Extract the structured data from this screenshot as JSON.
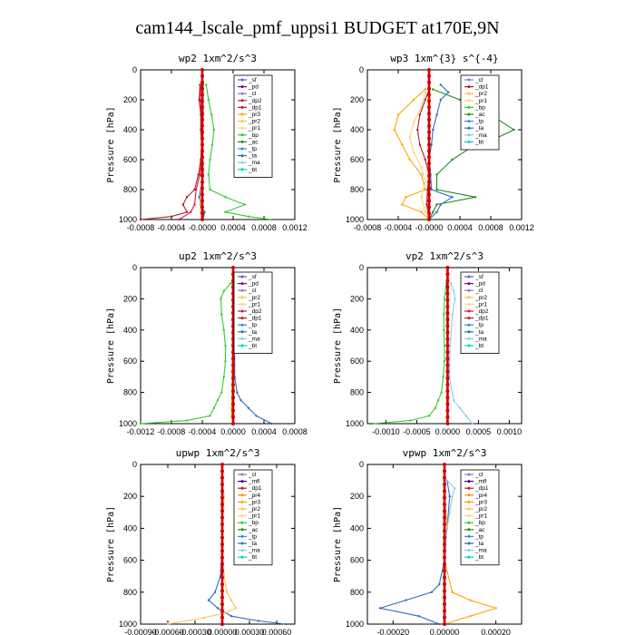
{
  "title": "cam144_lscale_pmf_uppsi1  BUDGET at170E,9N",
  "colors": {
    "sf": "#6a5acd",
    "pd": "#8b008b",
    "cl": "#9370db",
    "dp2": "#dc143c",
    "dp1": "#b22222",
    "pr3": "#ffa500",
    "pr2": "#ffc04d",
    "pr1": "#ffd27a",
    "bp": "#32cd32",
    "ac": "#228b22",
    "tp": "#1e90ff",
    "ta": "#2e6fb8",
    "ma": "#87ceeb",
    "bt": "#00ced1",
    "mfl": "#4b0082",
    "pr4": "#ff8c00",
    "red": "#d40000"
  },
  "chart_data": [
    {
      "type": "line",
      "title": "wp2  1xm^2/s^3",
      "ylabel": "Pressure [hPa]",
      "xlim": [
        -0.0008,
        0.0012
      ],
      "ylim": [
        1000,
        0
      ],
      "xticks": [
        "-0.0008",
        "-0.0004",
        "-0.0000",
        "0.0004",
        "0.0008",
        "0.0012"
      ],
      "yticks": [
        "0",
        "200",
        "400",
        "600",
        "800",
        "1000"
      ],
      "legend": [
        "_sf",
        "_pd",
        "_cl",
        "_dp2",
        "_dp1",
        "_pr3",
        "_pr2",
        "_pr1",
        "_bp",
        "_ac",
        "_tp",
        "_ta",
        "_ma",
        "_bt"
      ],
      "series": [
        {
          "name": "_bp",
          "color": "bp",
          "p": [
            100,
            200,
            300,
            400,
            500,
            600,
            700,
            800,
            850,
            900,
            950,
            980,
            1000
          ],
          "v": [
            5e-05,
            8e-05,
            0.00012,
            0.00015,
            0.00013,
            0.0001,
            8e-05,
            0.0001,
            0.0003,
            0.00055,
            0.0003,
            0.0006,
            0.0009
          ]
        },
        {
          "name": "_dp1",
          "color": "dp1",
          "p": [
            100,
            200,
            300,
            400,
            500,
            600,
            700,
            800,
            850,
            900,
            950,
            980,
            1000
          ],
          "v": [
            -3e-05,
            -4e-05,
            -2e-05,
            -2e-05,
            -1e-05,
            -2e-05,
            -5e-05,
            -0.0001,
            -0.0002,
            -0.00025,
            -0.0002,
            -0.0004,
            -0.0008
          ]
        },
        {
          "name": "_dp2",
          "color": "dp2",
          "p": [
            100,
            200,
            300,
            400,
            500,
            600,
            700,
            800,
            900,
            950,
            1000
          ],
          "v": [
            -2e-05,
            -3e-05,
            -1e-05,
            0,
            0,
            -1e-05,
            -3e-05,
            -8e-05,
            -0.0001,
            -0.00015,
            -0.0003
          ]
        },
        {
          "name": "_ta",
          "color": "ta",
          "p": [
            100,
            300,
            500,
            700,
            850,
            900,
            950,
            1000
          ],
          "v": [
            1e-05,
            1e-05,
            0,
            1e-05,
            -4e-05,
            -2e-05,
            3e-05,
            1e-05
          ]
        },
        {
          "name": "_pr2",
          "color": "pr2",
          "p": [
            100,
            300,
            500,
            700,
            900,
            950,
            1000
          ],
          "v": [
            0,
            0,
            0,
            0,
            -3e-05,
            -2e-05,
            0
          ]
        },
        {
          "name": "_pd",
          "color": "red",
          "p": [
            0,
            200,
            400,
            600,
            800,
            900,
            1000
          ],
          "v": [
            0,
            0,
            0,
            0,
            0,
            0,
            0
          ]
        }
      ]
    },
    {
      "type": "line",
      "title": "wp3  1xm^{3} s^{-4}",
      "ylabel": "Pressure [hPa]",
      "xlim": [
        -0.0008,
        0.0012
      ],
      "ylim": [
        1000,
        0
      ],
      "xticks": [
        "-0.0008",
        "-0.0004",
        "-0.0000",
        "0.0004",
        "0.0008",
        "0.0012"
      ],
      "yticks": [
        "0",
        "200",
        "400",
        "600",
        "800",
        "1000"
      ],
      "legend": [
        "_cl",
        "_dp1",
        "_pr2",
        "_pr1",
        "_bp",
        "_ac",
        "_tp",
        "_ta",
        "_ma",
        "_bt"
      ],
      "series": [
        {
          "name": "_pr2",
          "color": "pr3",
          "p": [
            130,
            200,
            300,
            400,
            500,
            600,
            700,
            800,
            850,
            900,
            950,
            1000
          ],
          "v": [
            -5e-05,
            -0.0002,
            -0.0004,
            -0.00045,
            -0.00035,
            -0.00025,
            -0.0001,
            -5e-05,
            -0.0003,
            -0.00035,
            -0.0001,
            0
          ]
        },
        {
          "name": "_pr1",
          "color": "pr1",
          "p": [
            150,
            250,
            350,
            450,
            550,
            650,
            750,
            850,
            950,
            1000
          ],
          "v": [
            -5e-05,
            -0.0001,
            -0.0002,
            -0.00025,
            -0.0002,
            -0.0001,
            -5e-05,
            -0.0001,
            -5e-05,
            0
          ]
        },
        {
          "name": "_dp1",
          "color": "dp1",
          "p": [
            130,
            200,
            300,
            400,
            500,
            600,
            700,
            800,
            900,
            1000
          ],
          "v": [
            0,
            -5e-05,
            -0.00012,
            -0.00015,
            -0.00012,
            -5e-05,
            0,
            -2e-05,
            -3e-05,
            0
          ]
        },
        {
          "name": "_ac",
          "color": "ac",
          "p": [
            130,
            200,
            300,
            400,
            450,
            500,
            600,
            700,
            800,
            850,
            900,
            950,
            1000
          ],
          "v": [
            5e-05,
            0.0004,
            0.0008,
            0.0011,
            0.0009,
            0.0006,
            0.0003,
            0.0001,
            0.0001,
            0.0006,
            0.0001,
            5e-05,
            0
          ]
        },
        {
          "name": "_ta",
          "color": "ta",
          "p": [
            100,
            150,
            200,
            300,
            400,
            500,
            600,
            700,
            800,
            850,
            900,
            950,
            1000
          ],
          "v": [
            0.00015,
            0.00025,
            0.00015,
            0.0001,
            5e-05,
            3e-05,
            0,
            2e-05,
            3e-05,
            0.0003,
            0.00015,
            0.0001,
            0
          ]
        },
        {
          "name": "_cl",
          "color": "red",
          "p": [
            0,
            200,
            400,
            600,
            800,
            1000
          ],
          "v": [
            0,
            0,
            0,
            0,
            0,
            0
          ]
        }
      ]
    },
    {
      "type": "line",
      "title": "up2  1xm^2/s^3",
      "ylabel": "Pressure [hPa]",
      "xlim": [
        -0.0012,
        0.0008
      ],
      "ylim": [
        1000,
        0
      ],
      "xticks": [
        "-0.0012",
        "-0.0008",
        "-0.0004",
        "0.0000",
        "0.0004",
        "0.0008"
      ],
      "yticks": [
        "0",
        "200",
        "400",
        "600",
        "800",
        "1000"
      ],
      "legend": [
        "_sf",
        "_pd",
        "_cl",
        "_pr2",
        "_pr1",
        "_dp2",
        "_dp1",
        "_tp",
        "_ta",
        "_ma",
        "_bt"
      ],
      "series": [
        {
          "name": "_dp1",
          "color": "bp",
          "p": [
            100,
            150,
            200,
            300,
            400,
            500,
            600,
            700,
            800,
            850,
            900,
            950,
            980,
            1000
          ],
          "v": [
            -3e-05,
            -0.00012,
            -0.00016,
            -0.00015,
            -0.00012,
            -0.0001,
            -0.0001,
            -0.00012,
            -0.00015,
            -0.0002,
            -0.00025,
            -0.0003,
            -0.0006,
            -0.0012
          ]
        },
        {
          "name": "_ta",
          "color": "ta",
          "p": [
            100,
            200,
            300,
            500,
            700,
            800,
            850,
            900,
            950,
            1000
          ],
          "v": [
            1e-05,
            3e-05,
            3e-05,
            2e-05,
            2e-05,
            5e-05,
            0.0001,
            0.0002,
            0.0003,
            0.0005
          ]
        },
        {
          "name": "_pr2",
          "color": "pr3",
          "p": [
            100,
            500,
            900,
            950,
            1000
          ],
          "v": [
            0,
            0,
            -2e-05,
            -2e-05,
            0
          ]
        },
        {
          "name": "_cl",
          "color": "red",
          "p": [
            0,
            200,
            400,
            600,
            800,
            1000
          ],
          "v": [
            0,
            0,
            0,
            0,
            0,
            0
          ]
        }
      ]
    },
    {
      "type": "line",
      "title": "vp2  1xm^2/s^3",
      "ylabel": "Pressure [hPa]",
      "xlim": [
        -0.0013,
        0.0012
      ],
      "ylim": [
        1000,
        0
      ],
      "xticks": [
        "-0.0010",
        "-0.0005",
        "0.0000",
        "0.0005",
        "0.0010"
      ],
      "xtick_vals": [
        -0.001,
        -0.0005,
        0,
        0.0005,
        0.001
      ],
      "yticks": [
        "0",
        "200",
        "400",
        "600",
        "800",
        "1000"
      ],
      "legend": [
        "_sf",
        "_pd",
        "_cl",
        "_pr2",
        "_pr1",
        "_dp2",
        "_dp1",
        "_tp",
        "_ta",
        "_ma",
        "_bt"
      ],
      "series": [
        {
          "name": "_dp1",
          "color": "bp",
          "p": [
            100,
            200,
            300,
            400,
            500,
            600,
            700,
            800,
            850,
            900,
            950,
            980,
            1000
          ],
          "v": [
            -2e-05,
            -5e-05,
            -6e-05,
            -6e-05,
            -5e-05,
            -5e-05,
            -7e-05,
            -0.0001,
            -0.00015,
            -0.0002,
            -0.0003,
            -0.0006,
            -0.0012
          ]
        },
        {
          "name": "_ta",
          "color": "ma",
          "p": [
            100,
            150,
            200,
            300,
            500,
            700,
            850,
            900,
            950,
            1000
          ],
          "v": [
            5e-05,
            0.0001,
            0.00012,
            8e-05,
            4e-05,
            3e-05,
            0.0001,
            0.0002,
            0.0003,
            0.0004
          ]
        },
        {
          "name": "_cl",
          "color": "red",
          "p": [
            0,
            200,
            400,
            600,
            800,
            1000
          ],
          "v": [
            0,
            0,
            0,
            0,
            0,
            0
          ]
        }
      ]
    },
    {
      "type": "line",
      "title": "upwp  1xm^2/s^3",
      "ylabel": "Pressure [hPa]",
      "xlim": [
        -0.0009,
        0.0008
      ],
      "ylim": [
        1000,
        0
      ],
      "xticks": [
        "-0.00090",
        "-0.00060",
        "-0.00030",
        "0.00000",
        "0.00030",
        "0.00060"
      ],
      "xtick_vals": [
        -0.0009,
        -0.0006,
        -0.0003,
        0,
        0.0003,
        0.0006
      ],
      "yticks": [
        "0",
        "200",
        "400",
        "600",
        "800",
        "1000"
      ],
      "legend": [
        "_cl",
        "_mfl",
        "_dp1",
        "_pr4",
        "_pr3",
        "_pr2",
        "_pr1",
        "_bp",
        "_ac",
        "_tp",
        "_ta",
        "_ma",
        "_bt"
      ],
      "series": [
        {
          "name": "_ta",
          "color": "ta",
          "p": [
            100,
            300,
            500,
            700,
            800,
            850,
            900,
            950,
            980,
            1000
          ],
          "v": [
            0,
            0,
            0,
            -2e-05,
            -8e-05,
            -0.00015,
            -5e-05,
            0.0001,
            0.0004,
            0.0007
          ]
        },
        {
          "name": "_pr2",
          "color": "pr2",
          "p": [
            100,
            200,
            400,
            600,
            800,
            850,
            900,
            930,
            960,
            1000
          ],
          "v": [
            0,
            2e-05,
            0,
            0,
            5e-05,
            0.0001,
            0.00015,
            3e-05,
            -0.0002,
            -0.0006
          ]
        },
        {
          "name": "_mfl",
          "color": "red",
          "p": [
            0,
            200,
            400,
            600,
            800,
            1000
          ],
          "v": [
            0,
            0,
            0,
            0,
            0,
            0
          ]
        }
      ]
    },
    {
      "type": "line",
      "title": "vpwp  1xm^2/s^3",
      "ylabel": "Pressure [hPa]",
      "xlim": [
        -0.0003,
        0.0003
      ],
      "ylim": [
        1000,
        0
      ],
      "xticks": [
        "-0.00020",
        "0.00000",
        "0.00020"
      ],
      "xtick_vals": [
        -0.0002,
        0,
        0.0002
      ],
      "yticks": [
        "0",
        "200",
        "400",
        "600",
        "800",
        "1000"
      ],
      "legend": [
        "_cl",
        "_mfl",
        "_dp1",
        "_pr4",
        "_pr3",
        "_pr2",
        "_pr1",
        "_bp",
        "_ac",
        "_tp",
        "_ta",
        "_ma",
        "_bt"
      ],
      "series": [
        {
          "name": "_ta",
          "color": "ta",
          "p": [
            100,
            200,
            400,
            600,
            750,
            800,
            850,
            900,
            950,
            1000
          ],
          "v": [
            1e-05,
            2e-05,
            1e-05,
            0,
            -2e-05,
            -5e-05,
            -0.00015,
            -0.00025,
            -0.0001,
            -2e-05
          ]
        },
        {
          "name": "_pr2",
          "color": "pr3",
          "p": [
            100,
            200,
            400,
            600,
            800,
            850,
            900,
            950,
            1000
          ],
          "v": [
            0,
            0,
            1e-05,
            0,
            3e-05,
            0.0001,
            0.0002,
            0.0001,
            0
          ]
        },
        {
          "name": "_ma",
          "color": "ma",
          "p": [
            100,
            150,
            200,
            300,
            400,
            600,
            800,
            1000
          ],
          "v": [
            1e-05,
            4e-05,
            3e-05,
            2e-05,
            1e-05,
            0,
            0,
            0
          ]
        },
        {
          "name": "_mfl",
          "color": "red",
          "p": [
            0,
            200,
            400,
            600,
            800,
            1000
          ],
          "v": [
            0,
            0,
            0,
            0,
            0,
            0
          ]
        }
      ]
    }
  ]
}
